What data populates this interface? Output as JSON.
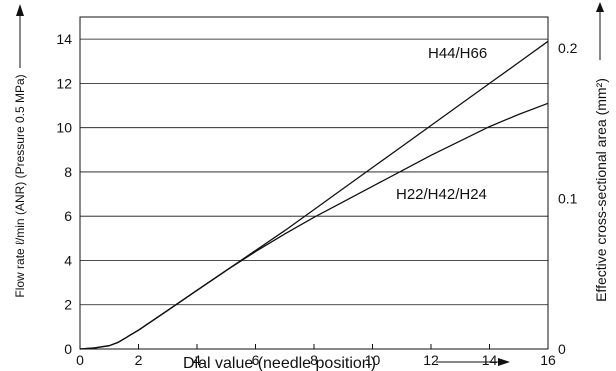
{
  "chart_data": {
    "type": "line",
    "xlabel": "Dial value (needle position)",
    "ylabel_left": "Flow rate ℓ/min (ANR) (Pressure 0.5 MPa)",
    "ylabel_right": "Effective cross-sectional area (mm²)",
    "xlim": [
      0,
      16
    ],
    "ylim": [
      0,
      15
    ],
    "x_ticks": [
      0,
      2,
      4,
      6,
      8,
      10,
      12,
      14,
      16
    ],
    "y_ticks": [
      0,
      2,
      4,
      6,
      8,
      10,
      12,
      14
    ],
    "y_right_ticks": [
      {
        "label": "0",
        "at": 0
      },
      {
        "label": "0.1",
        "at": 6.8
      },
      {
        "label": "0.2",
        "at": 13.6
      }
    ],
    "grid": "horizontal",
    "series": [
      {
        "name": "H44/H66",
        "x": [
          0,
          0.5,
          1,
          1.3,
          2,
          3,
          4,
          5,
          6,
          7,
          8,
          9,
          10,
          11,
          12,
          13,
          14,
          15,
          16
        ],
        "y": [
          0,
          0.05,
          0.15,
          0.3,
          0.85,
          1.75,
          2.65,
          3.55,
          4.45,
          5.35,
          6.3,
          7.25,
          8.2,
          9.15,
          10.1,
          11.05,
          12.0,
          12.95,
          13.9
        ]
      },
      {
        "name": "H22/H42/H24",
        "x": [
          0,
          0.5,
          1,
          1.3,
          2,
          3,
          4,
          5,
          6,
          7,
          8,
          9,
          10,
          11,
          12,
          13,
          14,
          15,
          16
        ],
        "y": [
          0,
          0.05,
          0.15,
          0.3,
          0.85,
          1.75,
          2.65,
          3.55,
          4.4,
          5.2,
          5.95,
          6.65,
          7.35,
          8.05,
          8.75,
          9.4,
          10.05,
          10.6,
          11.1
        ]
      }
    ]
  }
}
